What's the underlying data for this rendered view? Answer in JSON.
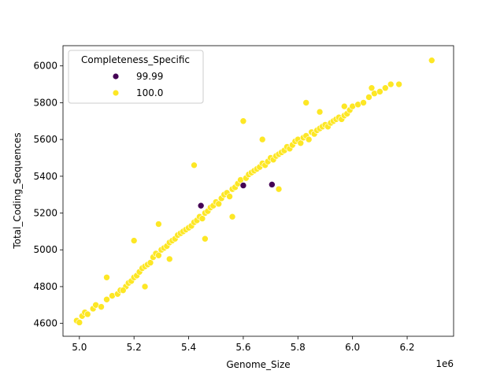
{
  "chart_data": {
    "type": "scatter",
    "title": "",
    "xlabel": "Genome_Size",
    "ylabel": "Total_Coding_Sequences",
    "x_offset_label": "1e6",
    "x_scale": 1000000,
    "xlim": [
      4.94,
      6.37
    ],
    "ylim": [
      4530,
      6110
    ],
    "xticks": [
      5.0,
      5.2,
      5.4,
      5.6,
      5.8,
      6.0,
      6.2
    ],
    "xtick_labels": [
      "5.0",
      "5.2",
      "5.4",
      "5.6",
      "5.8",
      "6.0",
      "6.2"
    ],
    "yticks": [
      4600,
      4800,
      5000,
      5200,
      5400,
      5600,
      5800,
      6000
    ],
    "ytick_labels": [
      "4600",
      "4800",
      "5000",
      "5200",
      "5400",
      "5600",
      "5800",
      "6000"
    ],
    "grid": false,
    "legend": {
      "title": "Completeness_Specific",
      "placement": "upper-left",
      "entries": [
        {
          "label": "99.99",
          "color": "#440154"
        },
        {
          "label": "100.0",
          "color": "#fde725"
        }
      ]
    },
    "series": [
      {
        "name": "99.99",
        "color": "#440154",
        "x": [
          5.445,
          5.6,
          5.705
        ],
        "y": [
          5240,
          5350,
          5355
        ]
      },
      {
        "name": "100.0",
        "color": "#fde725",
        "x": [
          4.99,
          5.0,
          5.01,
          5.02,
          5.03,
          5.05,
          5.06,
          5.08,
          5.1,
          5.12,
          5.14,
          5.15,
          5.17,
          5.18,
          5.19,
          5.2,
          5.21,
          5.22,
          5.23,
          5.24,
          5.25,
          5.26,
          5.27,
          5.28,
          5.29,
          5.3,
          5.31,
          5.32,
          5.33,
          5.34,
          5.35,
          5.36,
          5.37,
          5.38,
          5.39,
          5.4,
          5.41,
          5.42,
          5.43,
          5.44,
          5.45,
          5.46,
          5.47,
          5.48,
          5.49,
          5.5,
          5.51,
          5.52,
          5.53,
          5.54,
          5.55,
          5.56,
          5.57,
          5.58,
          5.59,
          5.61,
          5.62,
          5.63,
          5.64,
          5.65,
          5.66,
          5.67,
          5.68,
          5.69,
          5.7,
          5.71,
          5.72,
          5.73,
          5.74,
          5.75,
          5.76,
          5.77,
          5.78,
          5.79,
          5.8,
          5.81,
          5.82,
          5.83,
          5.84,
          5.85,
          5.86,
          5.87,
          5.88,
          5.89,
          5.9,
          5.91,
          5.92,
          5.93,
          5.94,
          5.95,
          5.96,
          5.97,
          5.98,
          5.99,
          6.0,
          6.02,
          6.04,
          6.06,
          6.08,
          6.1,
          6.12,
          6.14,
          6.17,
          6.29,
          5.1,
          5.2,
          5.29,
          5.42,
          5.6,
          5.67,
          5.83,
          5.88,
          6.07,
          5.97,
          5.46,
          5.33,
          5.24,
          5.16,
          5.56,
          5.73
        ],
        "y": [
          4615,
          4605,
          4640,
          4660,
          4650,
          4680,
          4700,
          4690,
          4730,
          4750,
          4760,
          4780,
          4800,
          4820,
          4830,
          4850,
          4860,
          4880,
          4900,
          4910,
          4920,
          4930,
          4960,
          4980,
          4970,
          5000,
          5010,
          5020,
          5040,
          5050,
          5060,
          5080,
          5090,
          5100,
          5110,
          5120,
          5130,
          5150,
          5160,
          5180,
          5170,
          5200,
          5210,
          5230,
          5240,
          5260,
          5250,
          5280,
          5300,
          5310,
          5290,
          5330,
          5340,
          5360,
          5380,
          5390,
          5410,
          5420,
          5430,
          5440,
          5450,
          5470,
          5460,
          5480,
          5500,
          5490,
          5510,
          5520,
          5530,
          5540,
          5560,
          5550,
          5570,
          5590,
          5600,
          5580,
          5610,
          5620,
          5600,
          5640,
          5630,
          5650,
          5660,
          5670,
          5680,
          5670,
          5690,
          5700,
          5710,
          5720,
          5710,
          5730,
          5740,
          5760,
          5780,
          5790,
          5800,
          5830,
          5850,
          5860,
          5880,
          5900,
          5900,
          6030,
          4850,
          5050,
          5140,
          5460,
          5700,
          5600,
          5800,
          5750,
          5880,
          5780,
          5060,
          4950,
          4800,
          4780,
          5180,
          5330
        ]
      }
    ]
  }
}
